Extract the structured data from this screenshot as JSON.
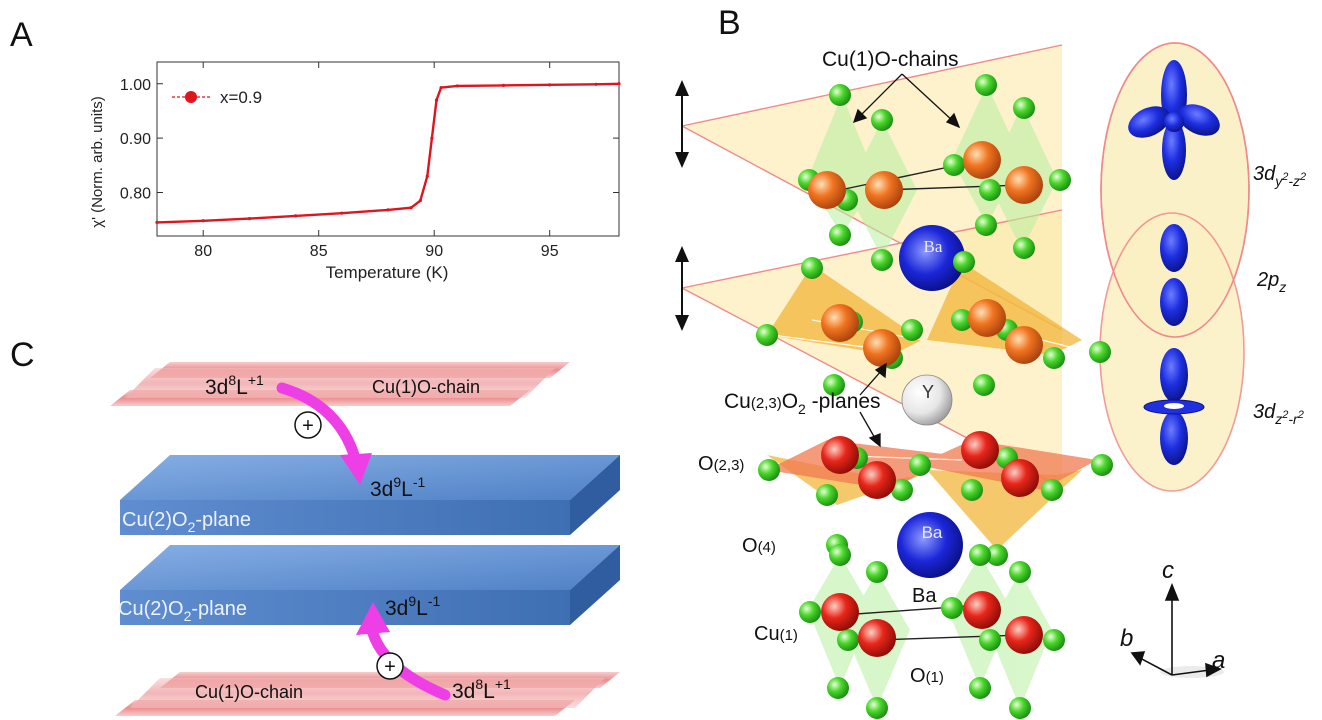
{
  "panels": {
    "a": "A",
    "b": "B",
    "c": "C"
  },
  "chart_data": {
    "type": "line",
    "xlabel": "Temperature (K)",
    "ylabel": "χ' (Norm. arb. units)",
    "xlim": [
      78,
      98
    ],
    "ylim": [
      0.72,
      1.04
    ],
    "xticks": [
      "80",
      "85",
      "90",
      "95"
    ],
    "yticks": [
      "0.80",
      "0.90",
      "1.00"
    ],
    "grid": false,
    "legend_position": "top-left",
    "series": [
      {
        "name": "x=0.9",
        "color": "#e0141e",
        "x": [
          78,
          80,
          82,
          84,
          86,
          88,
          89,
          89.4,
          89.7,
          89.9,
          90.1,
          90.3,
          91,
          93,
          95,
          97,
          98
        ],
        "y": [
          0.745,
          0.748,
          0.752,
          0.757,
          0.762,
          0.768,
          0.772,
          0.785,
          0.83,
          0.9,
          0.97,
          0.993,
          0.996,
          0.997,
          0.998,
          0.999,
          1.0
        ]
      }
    ]
  },
  "panelC": {
    "top_chain_label": "Cu(1)O-chain",
    "top_chain_state": "3d",
    "top_chain_state_sup1": "8",
    "top_chain_state_L": "L",
    "top_chain_state_sup2": "+1",
    "plane1_label": "Cu(2)O",
    "plane1_sub": "2",
    "plane1_suffix": "-plane",
    "plane1_state": "3d",
    "plane1_state_sup1": "9",
    "plane1_state_L": "L",
    "plane1_state_sup2": "-1",
    "plane2_label": "Cu(2)O",
    "plane2_sub": "2",
    "plane2_suffix": "-plane",
    "plane2_state": "3d",
    "plane2_state_sup1": "9",
    "plane2_state_L": "L",
    "plane2_state_sup2": "-1",
    "bottom_chain_label": "Cu(1)O-chain",
    "bottom_chain_state": "3d",
    "bottom_chain_state_sup1": "8",
    "bottom_chain_state_L": "L",
    "bottom_chain_state_sup2": "+1",
    "plus_symbol": "+"
  },
  "panelB": {
    "chains_label": "Cu(1)O-chains",
    "planes_label_a": "Cu",
    "planes_label_b": "(2,3)",
    "planes_label_c": "O",
    "planes_label_d": "2",
    "planes_label_e": " -planes",
    "o23_a": "O",
    "o23_b": "(2,3)",
    "o4_a": "O",
    "o4_b": "(4)",
    "cu1_a": "Cu",
    "cu1_b": "(1)",
    "o1_a": "O",
    "o1_b": "(1)",
    "ba_upper": "Ba",
    "ba_lower": "Ba",
    "ba_label": "Ba",
    "y_atom": "Y",
    "orbital1_a": "3d",
    "orbital1_b": "y",
    "orbital1_c": "2",
    "orbital1_d": "-z",
    "orbital1_e": "2",
    "orbital2_a": "2p",
    "orbital2_b": "z",
    "orbital3_a": "3d",
    "orbital3_b": "z",
    "orbital3_c": "2",
    "orbital3_d": "-r",
    "orbital3_e": "2",
    "axis_c": "c",
    "axis_b": "b",
    "axis_a": "a"
  }
}
